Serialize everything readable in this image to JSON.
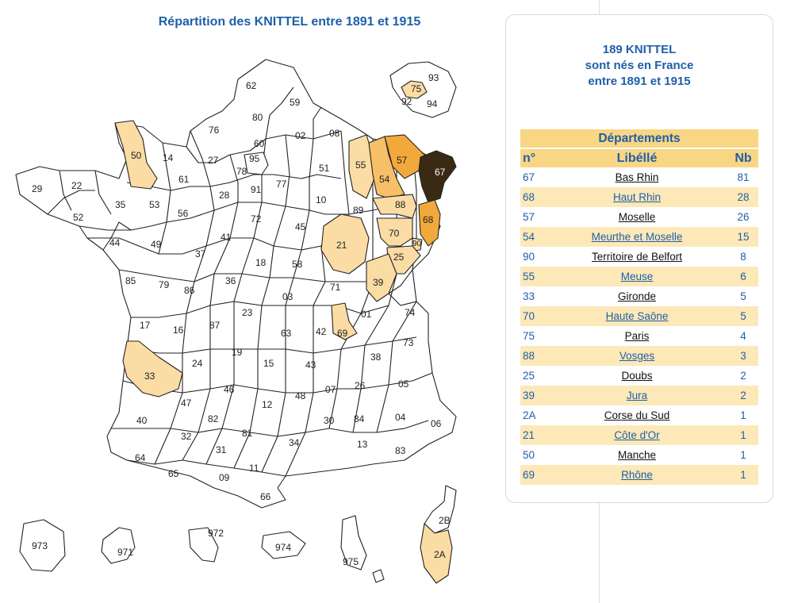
{
  "map_title": "Répartition des KNITTEL entre 1891 et 1915",
  "summary": {
    "line1": "189 KNITTEL",
    "line2": "sont nés en France",
    "line3": "entre 1891 et 1915"
  },
  "table": {
    "caption": "Départements",
    "columns": [
      "n°",
      "Libéllé",
      "Nb"
    ],
    "rows": [
      {
        "code": "67",
        "label": "Bas Rhin",
        "count": "81"
      },
      {
        "code": "68",
        "label": "Haut Rhin",
        "count": "28"
      },
      {
        "code": "57",
        "label": "Moselle",
        "count": "26"
      },
      {
        "code": "54",
        "label": "Meurthe et Moselle",
        "count": "15"
      },
      {
        "code": "90",
        "label": "Territoire de Belfort",
        "count": "8"
      },
      {
        "code": "55",
        "label": "Meuse",
        "count": "6"
      },
      {
        "code": "33",
        "label": "Gironde",
        "count": "5"
      },
      {
        "code": "70",
        "label": "Haute Saône",
        "count": "5"
      },
      {
        "code": "75",
        "label": "Paris",
        "count": "4"
      },
      {
        "code": "88",
        "label": "Vosges",
        "count": "3"
      },
      {
        "code": "25",
        "label": "Doubs",
        "count": "2"
      },
      {
        "code": "39",
        "label": "Jura",
        "count": "2"
      },
      {
        "code": "2A",
        "label": "Corse du Sud",
        "count": "1"
      },
      {
        "code": "21",
        "label": "Côte d'Or",
        "count": "1"
      },
      {
        "code": "50",
        "label": "Manche",
        "count": "1"
      },
      {
        "code": "69",
        "label": "Rhône",
        "count": "1"
      }
    ]
  },
  "map_colors": {
    "none": "#ffffff",
    "low": "#fbdca4",
    "mid": "#f7c068",
    "high": "#f2a93b",
    "max": "#3a2a14"
  },
  "map_labels": [
    "62",
    "59",
    "80",
    "02",
    "08",
    "76",
    "60",
    "14",
    "50",
    "27",
    "95",
    "78",
    "93",
    "92",
    "75",
    "94",
    "91",
    "77",
    "51",
    "55",
    "57",
    "67",
    "29",
    "22",
    "35",
    "53",
    "61",
    "28",
    "10",
    "54",
    "88",
    "52",
    "56",
    "72",
    "45",
    "89",
    "70",
    "68",
    "21",
    "90",
    "44",
    "49",
    "37",
    "41",
    "25",
    "18",
    "58",
    "85",
    "79",
    "86",
    "36",
    "71",
    "39",
    "03",
    "17",
    "16",
    "87",
    "23",
    "01",
    "74",
    "69",
    "42",
    "63",
    "73",
    "38",
    "15",
    "43",
    "33",
    "24",
    "19",
    "46",
    "07",
    "26",
    "05",
    "47",
    "12",
    "48",
    "40",
    "82",
    "30",
    "84",
    "04",
    "06",
    "81",
    "32",
    "13",
    "83",
    "64",
    "31",
    "34",
    "65",
    "09",
    "11",
    "66",
    "2B",
    "2A",
    "973",
    "971",
    "972",
    "974",
    "975"
  ]
}
